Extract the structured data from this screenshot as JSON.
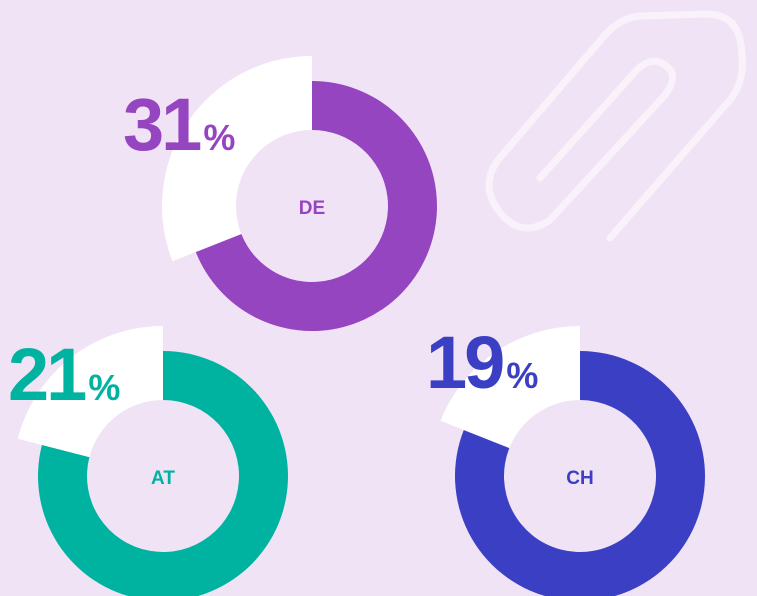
{
  "chart_data": [
    {
      "type": "donut",
      "label": "DE",
      "values": [
        31
      ],
      "unit": "%",
      "color": "#9645c0"
    },
    {
      "type": "donut",
      "label": "AT",
      "values": [
        21
      ],
      "unit": "%",
      "color": "#00b3a1"
    },
    {
      "type": "donut",
      "label": "CH",
      "values": [
        19
      ],
      "unit": "%",
      "color": "#3a3fc4"
    }
  ]
}
